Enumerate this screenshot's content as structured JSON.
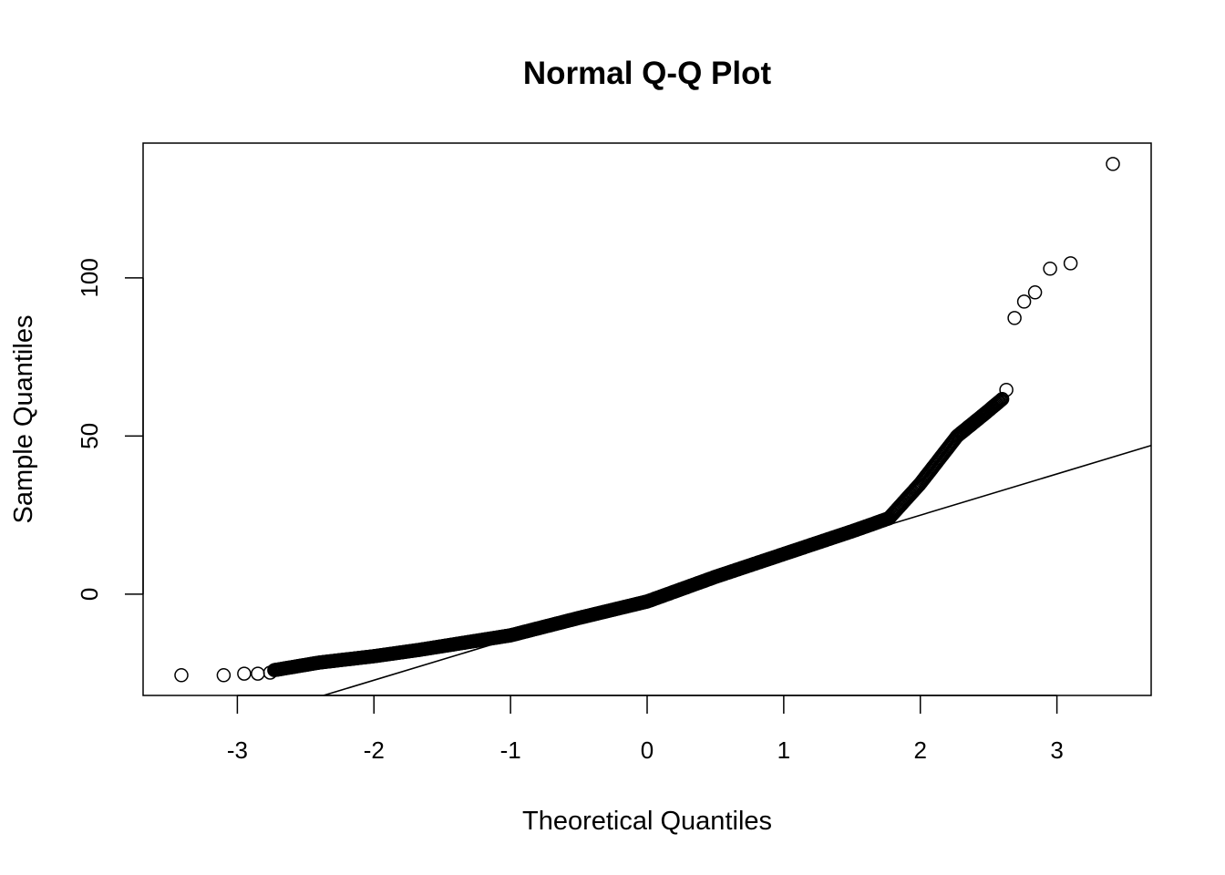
{
  "chart_data": {
    "type": "scatter",
    "title": "Normal Q-Q Plot",
    "xlabel": "Theoretical Quantiles",
    "ylabel": "Sample Quantiles",
    "xlim": [
      -3.69,
      3.69
    ],
    "ylim": [
      -32,
      142.6
    ],
    "xticks": [
      -3,
      -2,
      -1,
      0,
      1,
      2,
      3
    ],
    "xtick_labels": [
      "-3",
      "-2",
      "-1",
      "0",
      "1",
      "2",
      "3"
    ],
    "yticks": [
      0,
      50,
      100
    ],
    "ytick_labels": [
      "0",
      "50",
      "100"
    ],
    "grid": false,
    "legend": "none",
    "reference_line": {
      "intercept": -1.1,
      "slope": 13.04
    },
    "curve_knots": [
      [
        -2.73,
        -24.0
      ],
      [
        -2.4,
        -21.6
      ],
      [
        -2.0,
        -19.6
      ],
      [
        -1.67,
        -17.6
      ],
      [
        -1.0,
        -13.0
      ],
      [
        -0.5,
        -7.5
      ],
      [
        0.0,
        -2.3
      ],
      [
        0.5,
        5.5
      ],
      [
        1.0,
        12.7
      ],
      [
        1.5,
        19.9
      ],
      [
        1.77,
        24.0
      ],
      [
        2.0,
        35.0
      ],
      [
        2.27,
        50.0
      ],
      [
        2.47,
        57.0
      ],
      [
        2.6,
        61.7
      ]
    ],
    "tail_points": [
      [
        -3.41,
        -25.6
      ],
      [
        -3.1,
        -25.6
      ],
      [
        -2.95,
        -25.1
      ],
      [
        -2.85,
        -25.1
      ],
      [
        -2.76,
        -24.8
      ],
      [
        2.63,
        64.6
      ],
      [
        2.69,
        87.3
      ],
      [
        2.76,
        92.5
      ],
      [
        2.84,
        95.4
      ],
      [
        2.95,
        102.9
      ],
      [
        3.1,
        104.6
      ],
      [
        3.41,
        136.0
      ]
    ]
  }
}
